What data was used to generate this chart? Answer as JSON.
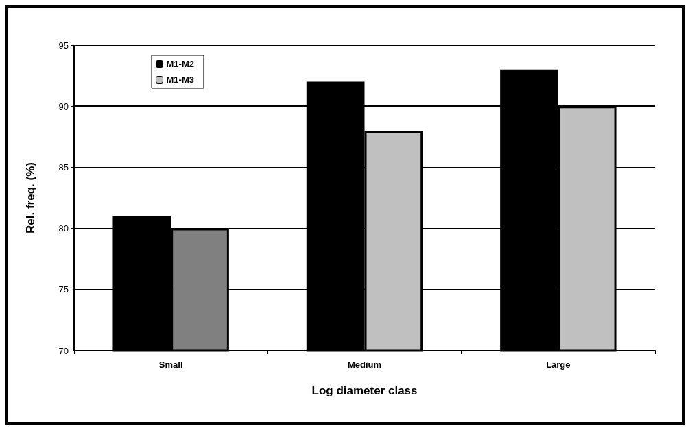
{
  "chart_data": {
    "type": "bar",
    "xlabel": "Log diameter class",
    "ylabel": "Rel. freq. (%)",
    "categories": [
      "Small",
      "Medium",
      "Large"
    ],
    "series": [
      {
        "name": "M1-M2",
        "color": "#000000",
        "values": [
          81,
          92,
          93
        ]
      },
      {
        "name": "M1-M3",
        "color": "#c0c0c0",
        "colors": [
          "#808080",
          "#c0c0c0",
          "#c0c0c0"
        ],
        "values": [
          80,
          88,
          90
        ]
      }
    ],
    "ylim": [
      70,
      95
    ],
    "yticks": [
      70,
      75,
      80,
      85,
      90,
      95
    ],
    "grid": "y",
    "legend": "top left"
  }
}
